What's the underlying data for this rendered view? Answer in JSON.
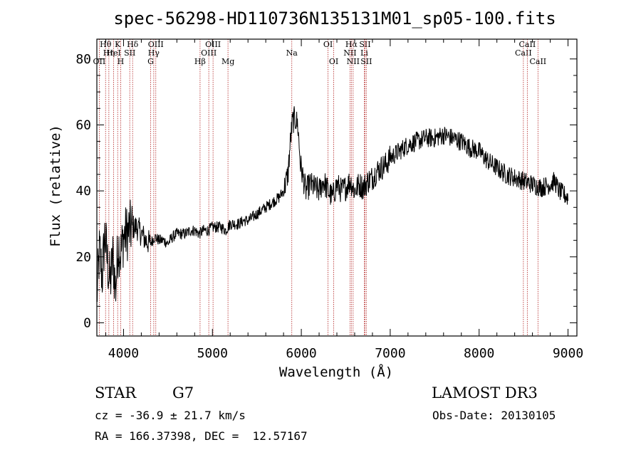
{
  "chart_data": {
    "type": "line",
    "title": "spec-56298-HD110736N135131M01_sp05-100.fits",
    "xlabel": "Wavelength (Å)",
    "ylabel": "Flux (relative)",
    "xlim": [
      3700,
      9100
    ],
    "ylim": [
      -4,
      86
    ],
    "xticks": [
      4000,
      5000,
      6000,
      7000,
      8000,
      9000
    ],
    "yticks": [
      0,
      20,
      40,
      60,
      80
    ],
    "xtick_labels": [
      "4000",
      "5000",
      "6000",
      "7000",
      "8000",
      "9000"
    ],
    "ytick_labels": [
      "0",
      "20",
      "40",
      "60",
      "80"
    ],
    "grid": false,
    "series": [
      {
        "name": "spectrum",
        "x": [
          3700,
          3730,
          3760,
          3790,
          3820,
          3850,
          3880,
          3910,
          3940,
          3970,
          4000,
          4030,
          4060,
          4100,
          4150,
          4200,
          4250,
          4300,
          4350,
          4400,
          4450,
          4500,
          4550,
          4600,
          4650,
          4700,
          4750,
          4800,
          4850,
          4900,
          4950,
          5000,
          5050,
          5100,
          5150,
          5200,
          5250,
          5300,
          5350,
          5400,
          5450,
          5500,
          5550,
          5600,
          5650,
          5700,
          5750,
          5800,
          5850,
          5880,
          5900,
          5930,
          5960,
          5990,
          6020,
          6050,
          6100,
          6150,
          6200,
          6250,
          6300,
          6350,
          6400,
          6450,
          6500,
          6550,
          6600,
          6650,
          6700,
          6750,
          6800,
          6850,
          6900,
          6950,
          7000,
          7100,
          7200,
          7300,
          7400,
          7500,
          7600,
          7700,
          7800,
          7900,
          8000,
          8100,
          8200,
          8300,
          8400,
          8500,
          8600,
          8700,
          8800,
          8850,
          8900,
          8950,
          9000
        ],
        "y": [
          8,
          22,
          14,
          27,
          18,
          12,
          20,
          10,
          24,
          21,
          26,
          27,
          28,
          29,
          29,
          27,
          25,
          24,
          26,
          25,
          25,
          24,
          26,
          27,
          27,
          27,
          28,
          28,
          27,
          28,
          28,
          29,
          29,
          29,
          28,
          30,
          30,
          30,
          31,
          31,
          32,
          33,
          34,
          35,
          36,
          37,
          38,
          40,
          45,
          56,
          61,
          62,
          60,
          48,
          44,
          40,
          42,
          41,
          40,
          43,
          40,
          38,
          42,
          40,
          41,
          43,
          40,
          42,
          41,
          43,
          44,
          46,
          47,
          48,
          50,
          52,
          54,
          55,
          56,
          56,
          57,
          56,
          55,
          53,
          52,
          49,
          47,
          45,
          44,
          43,
          42,
          41,
          42,
          43,
          40,
          39,
          38
        ]
      }
    ],
    "spectral_lines": [
      {
        "label": "Hθ",
        "x": 3798,
        "row": 0
      },
      {
        "label": "OII",
        "x": 3727,
        "row": 2
      },
      {
        "label": "Hη",
        "x": 3835,
        "row": 1
      },
      {
        "label": "HeI",
        "x": 3889,
        "row": 1
      },
      {
        "label": "K",
        "x": 3934,
        "row": 0
      },
      {
        "label": "H",
        "x": 3968,
        "row": 2
      },
      {
        "label": "SII",
        "x": 4070,
        "row": 1
      },
      {
        "label": "Hδ",
        "x": 4102,
        "row": 0
      },
      {
        "label": "Hγ",
        "x": 4340,
        "row": 1
      },
      {
        "label": "G",
        "x": 4305,
        "row": 2
      },
      {
        "label": "OIII",
        "x": 4363,
        "row": 0
      },
      {
        "label": "Hβ",
        "x": 4861,
        "row": 2
      },
      {
        "label": "OIII",
        "x": 4959,
        "row": 1
      },
      {
        "label": "OIII",
        "x": 5007,
        "row": 0
      },
      {
        "label": "Mg",
        "x": 5175,
        "row": 2
      },
      {
        "label": "Na",
        "x": 5893,
        "row": 1
      },
      {
        "label": "OI",
        "x": 6300,
        "row": 0
      },
      {
        "label": "OI",
        "x": 6364,
        "row": 2
      },
      {
        "label": "NII",
        "x": 6548,
        "row": 1
      },
      {
        "label": "Hα",
        "x": 6563,
        "row": 0
      },
      {
        "label": "NII",
        "x": 6583,
        "row": 2
      },
      {
        "label": "Li",
        "x": 6708,
        "row": 1
      },
      {
        "label": "SII",
        "x": 6716,
        "row": 0
      },
      {
        "label": "SII",
        "x": 6731,
        "row": 2
      },
      {
        "label": "CaII",
        "x": 8498,
        "row": 1
      },
      {
        "label": "CaII",
        "x": 8542,
        "row": 0
      },
      {
        "label": "CaII",
        "x": 8662,
        "row": 2
      }
    ]
  },
  "info": {
    "class": "STAR",
    "subclass": "G7",
    "survey": "LAMOST DR3",
    "cz": "cz = -36.9 ± 21.7 km/s",
    "obs_date": "Obs-Date: 20130105",
    "coords": "RA = 166.37398, DEC =  12.57167"
  }
}
